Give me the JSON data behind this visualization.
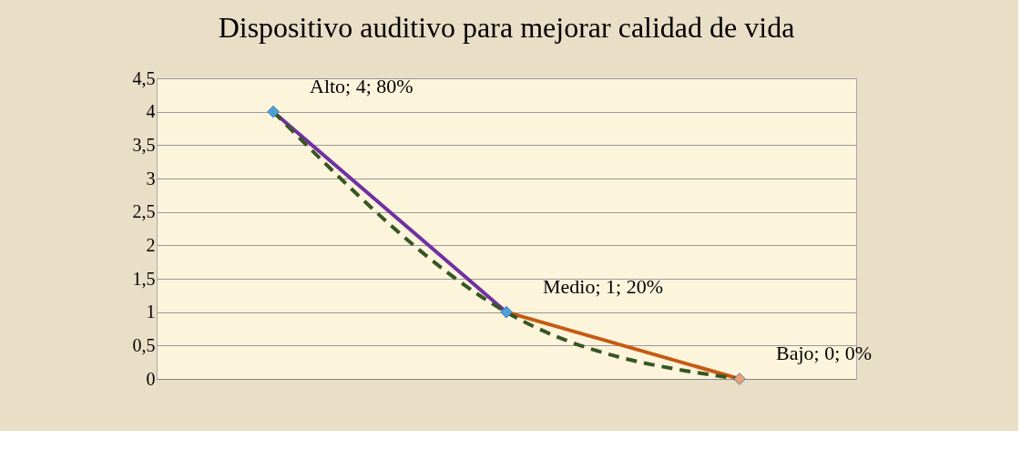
{
  "chart_data": {
    "type": "line",
    "title": "Dispositivo auditivo para mejorar calidad de vida",
    "categories": [
      null,
      null,
      null
    ],
    "ylim": [
      0,
      4.5
    ],
    "yticks": [
      0,
      {
        "value": 0.5,
        "label": "0,5"
      },
      1,
      {
        "value": 1.5,
        "label": "1,5"
      },
      2,
      {
        "value": 2.5,
        "label": "2,5"
      },
      3,
      {
        "value": 3.5,
        "label": "3,5"
      },
      4,
      {
        "value": 4.5,
        "label": "4,5"
      }
    ],
    "grid": "y",
    "series": [
      {
        "color": "#7030a0",
        "values": [
          4,
          1,
          null
        ],
        "line_style": "solid",
        "marker": "none"
      },
      {
        "color": "#c55a11",
        "values": [
          null,
          1,
          0
        ],
        "line_style": "solid",
        "marker": "none"
      },
      {
        "color": "#375623",
        "values": [
          4,
          1,
          0
        ],
        "line_style": "dashed",
        "marker": "none"
      },
      {
        "type": "scatter",
        "color": "#3f7fb8",
        "colors": [
          "#4f9fd8",
          "#4f9fd8",
          "#f0a070"
        ],
        "values": [
          4,
          1,
          0
        ],
        "marker": "diamond",
        "value_labels": [
          "Alto; 4; 80%",
          "Medio; 1; 20%",
          "Bajo; 0; 0%"
        ]
      }
    ]
  }
}
